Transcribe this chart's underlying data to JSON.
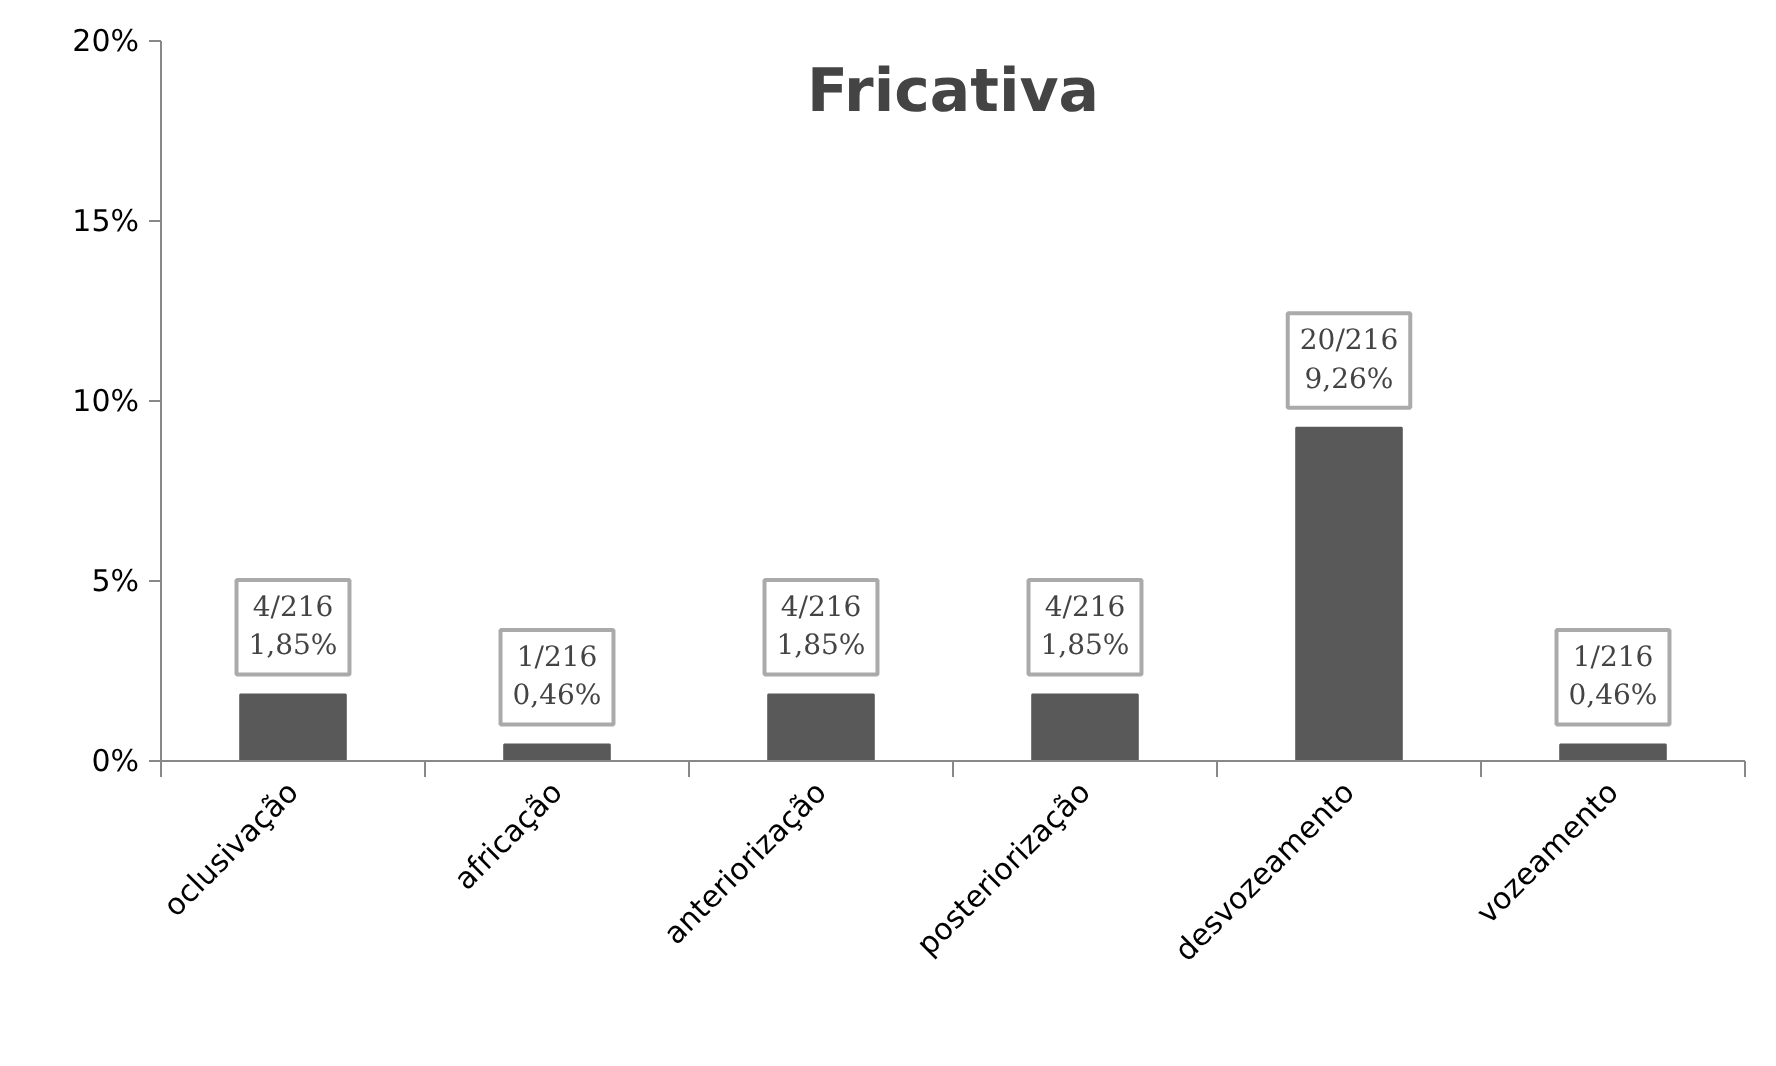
{
  "chart_data": {
    "type": "bar",
    "title": "Fricativa",
    "categories": [
      "oclusivação",
      "africação",
      "anteriorização",
      "posteriorização",
      "desvozeamento",
      "vozeamento"
    ],
    "values": [
      1.85,
      0.46,
      1.85,
      1.85,
      9.26,
      0.46
    ],
    "value_labels": [
      "4/216\n1,85%",
      "1/216\n0,46%",
      "4/216\n1,85%",
      "4/216\n1,85%",
      "20/216\n9,26%",
      "1/216\n0,46%"
    ],
    "color": "#595959",
    "ylim": [
      0,
      20
    ],
    "yticks": [
      {
        "value": 0,
        "label": "0%"
      },
      {
        "value": 5,
        "label": "5%"
      },
      {
        "value": 10,
        "label": "10%"
      },
      {
        "value": 15,
        "label": "15%"
      },
      {
        "value": 20,
        "label": "20%"
      }
    ],
    "grid": false
  }
}
